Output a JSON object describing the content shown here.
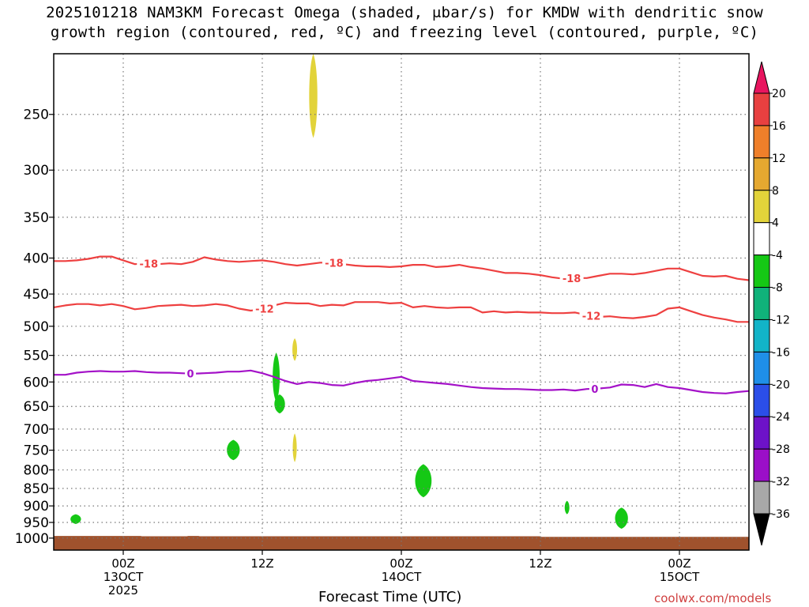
{
  "title": {
    "line1": "2025101218 NAM3KM Forecast Omega (shaded, μbar/s) for KMDW with dendritic snow",
    "line2": "growth region (contoured, red, ºC) and freezing level (contoured, purple, ºC)"
  },
  "credit": "coolwx.com/models",
  "chart_data": {
    "type": "contour",
    "title": "2025101218 NAM3KM Forecast Omega (shaded, μbar/s) for KMDW with dendritic snow growth region (contoured, red, ºC) and freezing level (contoured, purple, ºC)",
    "xlabel": "Forecast Time (UTC)",
    "ylabel": "",
    "x_range_hours_from_init": [
      0,
      60
    ],
    "y_scale": "log",
    "y_range_hpa": [
      1040,
      205
    ],
    "x_ticks": [
      {
        "hour": 6,
        "lines": [
          "00Z",
          "13OCT",
          "2025"
        ]
      },
      {
        "hour": 18,
        "lines": [
          "12Z"
        ]
      },
      {
        "hour": 30,
        "lines": [
          "00Z",
          "14OCT"
        ]
      },
      {
        "hour": 42,
        "lines": [
          "12Z"
        ]
      },
      {
        "hour": 54,
        "lines": [
          "00Z",
          "15OCT"
        ]
      }
    ],
    "y_ticks": [
      250,
      300,
      350,
      400,
      450,
      500,
      550,
      600,
      650,
      700,
      750,
      800,
      850,
      900,
      950,
      1000
    ],
    "grid": true,
    "colorbar": {
      "labels": [
        "20",
        "16",
        "12",
        "8",
        "4",
        "-4",
        "-8",
        "-12",
        "-16",
        "-20",
        "-24",
        "-28",
        "-32",
        "-36"
      ],
      "colors": [
        "#e8155f",
        "#e84040",
        "#ef7f2a",
        "#e5a830",
        "#e2d33a",
        "#ffffff",
        "#15c815",
        "#10b27a",
        "#12b4c8",
        "#1f8fe8",
        "#2b4ee8",
        "#6d12c8",
        "#9b0fc8",
        "#a8a8a8",
        "#000000"
      ]
    },
    "contours": {
      "dgz_red": {
        "color": "#ee4040",
        "lines": [
          {
            "level": -18,
            "labels_at_hours": [
              8.2,
              24.2,
              44.7
            ],
            "points": [
              [
                0,
                404
              ],
              [
                1,
                404
              ],
              [
                2,
                403
              ],
              [
                3,
                401
              ],
              [
                4,
                398
              ],
              [
                5,
                398
              ],
              [
                6,
                403
              ],
              [
                7,
                408
              ],
              [
                8,
                407
              ],
              [
                9,
                408
              ],
              [
                10,
                407
              ],
              [
                11,
                408
              ],
              [
                12,
                405
              ],
              [
                13,
                399
              ],
              [
                14,
                402
              ],
              [
                15,
                404
              ],
              [
                16,
                405
              ],
              [
                17,
                404
              ],
              [
                18,
                403
              ],
              [
                19,
                405
              ],
              [
                20,
                408
              ],
              [
                21,
                410
              ],
              [
                22,
                408
              ],
              [
                23,
                406
              ],
              [
                24,
                406
              ],
              [
                25,
                408
              ],
              [
                26,
                410
              ],
              [
                27,
                411
              ],
              [
                28,
                411
              ],
              [
                29,
                412
              ],
              [
                30,
                411
              ],
              [
                31,
                409
              ],
              [
                32,
                409
              ],
              [
                33,
                412
              ],
              [
                34,
                411
              ],
              [
                35,
                409
              ],
              [
                36,
                412
              ],
              [
                37,
                414
              ],
              [
                38,
                417
              ],
              [
                39,
                420
              ],
              [
                40,
                420
              ],
              [
                41,
                421
              ],
              [
                42,
                423
              ],
              [
                43,
                426
              ],
              [
                44,
                428
              ],
              [
                45,
                427
              ],
              [
                46,
                427
              ],
              [
                47,
                424
              ],
              [
                48,
                421
              ],
              [
                49,
                421
              ],
              [
                50,
                422
              ],
              [
                51,
                420
              ],
              [
                52,
                417
              ],
              [
                53,
                414
              ],
              [
                54,
                414
              ],
              [
                55,
                419
              ],
              [
                56,
                424
              ],
              [
                57,
                425
              ],
              [
                58,
                424
              ],
              [
                59,
                428
              ],
              [
                60,
                430
              ]
            ]
          },
          {
            "level": -12,
            "labels_at_hours": [
              18.2,
              46.4
            ],
            "points": [
              [
                0,
                470
              ],
              [
                1,
                467
              ],
              [
                2,
                465
              ],
              [
                3,
                465
              ],
              [
                4,
                467
              ],
              [
                5,
                465
              ],
              [
                6,
                468
              ],
              [
                7,
                473
              ],
              [
                8,
                471
              ],
              [
                9,
                468
              ],
              [
                10,
                467
              ],
              [
                11,
                466
              ],
              [
                12,
                468
              ],
              [
                13,
                467
              ],
              [
                14,
                465
              ],
              [
                15,
                467
              ],
              [
                16,
                472
              ],
              [
                17,
                475
              ],
              [
                18,
                473
              ],
              [
                19,
                467
              ],
              [
                20,
                463
              ],
              [
                21,
                464
              ],
              [
                22,
                464
              ],
              [
                23,
                468
              ],
              [
                24,
                466
              ],
              [
                25,
                467
              ],
              [
                26,
                462
              ],
              [
                27,
                462
              ],
              [
                28,
                462
              ],
              [
                29,
                464
              ],
              [
                30,
                463
              ],
              [
                31,
                470
              ],
              [
                32,
                468
              ],
              [
                33,
                470
              ],
              [
                34,
                471
              ],
              [
                35,
                470
              ],
              [
                36,
                470
              ],
              [
                37,
                478
              ],
              [
                38,
                476
              ],
              [
                39,
                478
              ],
              [
                40,
                477
              ],
              [
                41,
                478
              ],
              [
                42,
                478
              ],
              [
                43,
                479
              ],
              [
                44,
                479
              ],
              [
                45,
                478
              ],
              [
                46,
                482
              ],
              [
                47,
                485
              ],
              [
                48,
                484
              ],
              [
                49,
                486
              ],
              [
                50,
                487
              ],
              [
                51,
                485
              ],
              [
                52,
                482
              ],
              [
                53,
                472
              ],
              [
                54,
                470
              ],
              [
                55,
                476
              ],
              [
                56,
                482
              ],
              [
                57,
                486
              ],
              [
                58,
                489
              ],
              [
                59,
                493
              ],
              [
                60,
                493
              ]
            ]
          }
        ]
      },
      "freezing_purple": {
        "color": "#a412c8",
        "lines": [
          {
            "level": 0,
            "labels_at_hours": [
              11.8,
              46.7
            ],
            "points": [
              [
                0,
                586
              ],
              [
                1,
                586
              ],
              [
                2,
                582
              ],
              [
                3,
                580
              ],
              [
                4,
                579
              ],
              [
                5,
                580
              ],
              [
                6,
                580
              ],
              [
                7,
                579
              ],
              [
                8,
                581
              ],
              [
                9,
                582
              ],
              [
                10,
                582
              ],
              [
                11,
                583
              ],
              [
                12,
                584
              ],
              [
                13,
                583
              ],
              [
                14,
                582
              ],
              [
                15,
                580
              ],
              [
                16,
                580
              ],
              [
                17,
                578
              ],
              [
                18,
                583
              ],
              [
                19,
                590
              ],
              [
                20,
                598
              ],
              [
                21,
                604
              ],
              [
                22,
                600
              ],
              [
                23,
                602
              ],
              [
                24,
                606
              ],
              [
                25,
                607
              ],
              [
                26,
                602
              ],
              [
                27,
                598
              ],
              [
                28,
                596
              ],
              [
                29,
                593
              ],
              [
                30,
                590
              ],
              [
                31,
                598
              ],
              [
                32,
                600
              ],
              [
                33,
                602
              ],
              [
                34,
                604
              ],
              [
                35,
                607
              ],
              [
                36,
                610
              ],
              [
                37,
                612
              ],
              [
                38,
                613
              ],
              [
                39,
                614
              ],
              [
                40,
                614
              ],
              [
                41,
                615
              ],
              [
                42,
                616
              ],
              [
                43,
                616
              ],
              [
                44,
                615
              ],
              [
                45,
                617
              ],
              [
                46,
                614
              ],
              [
                47,
                613
              ],
              [
                48,
                611
              ],
              [
                49,
                605
              ],
              [
                50,
                606
              ],
              [
                51,
                610
              ],
              [
                52,
                604
              ],
              [
                53,
                610
              ],
              [
                54,
                612
              ],
              [
                55,
                616
              ],
              [
                56,
                620
              ],
              [
                57,
                622
              ],
              [
                58,
                623
              ],
              [
                59,
                620
              ],
              [
                60,
                618
              ]
            ]
          }
        ]
      }
    },
    "shaded_omega_regions": [
      {
        "category": "4 to 8",
        "color": "#e2d33a",
        "center_hour": 22.4,
        "p_top": 205,
        "p_bottom": 270,
        "half_width_hours": 0.35
      },
      {
        "category": "4 to 8",
        "color": "#e2d33a",
        "center_hour": 20.8,
        "p_top": 520,
        "p_bottom": 560,
        "half_width_hours": 0.2
      },
      {
        "category": "4 to 8",
        "color": "#e2d33a",
        "center_hour": 20.8,
        "p_top": 710,
        "p_bottom": 780,
        "half_width_hours": 0.1
      },
      {
        "category": "-4 to -8",
        "color": "#15c815",
        "center_hour": 19.2,
        "p_top": 545,
        "p_bottom": 640,
        "half_width_hours": 0.3
      },
      {
        "category": "-4 to -8",
        "color": "#15c815",
        "center_hour": 19.5,
        "p_top": 625,
        "p_bottom": 665,
        "half_width_hours": 0.45
      },
      {
        "category": "-4 to -8",
        "color": "#15c815",
        "center_hour": 15.5,
        "p_top": 725,
        "p_bottom": 775,
        "half_width_hours": 0.55
      },
      {
        "category": "-4 to -8",
        "color": "#15c815",
        "center_hour": 1.9,
        "p_top": 925,
        "p_bottom": 955,
        "half_width_hours": 0.45
      },
      {
        "category": "-4 to -8",
        "color": "#15c815",
        "center_hour": 31.9,
        "p_top": 785,
        "p_bottom": 875,
        "half_width_hours": 0.7
      },
      {
        "category": "-4 to -8",
        "color": "#15c815",
        "center_hour": 44.3,
        "p_top": 885,
        "p_bottom": 925,
        "half_width_hours": 0.2
      },
      {
        "category": "-4 to -8",
        "color": "#15c815",
        "center_hour": 49.0,
        "p_top": 905,
        "p_bottom": 970,
        "half_width_hours": 0.55
      }
    ],
    "terrain": {
      "color": "#a0522d",
      "surface_points": [
        [
          0,
          993
        ],
        [
          7.5,
          993
        ],
        [
          7.6,
          994
        ],
        [
          11.5,
          994
        ],
        [
          11.6,
          993
        ],
        [
          12.5,
          993
        ],
        [
          12.6,
          994
        ],
        [
          42,
          994
        ],
        [
          42.1,
          996
        ],
        [
          60,
          996
        ]
      ]
    }
  }
}
